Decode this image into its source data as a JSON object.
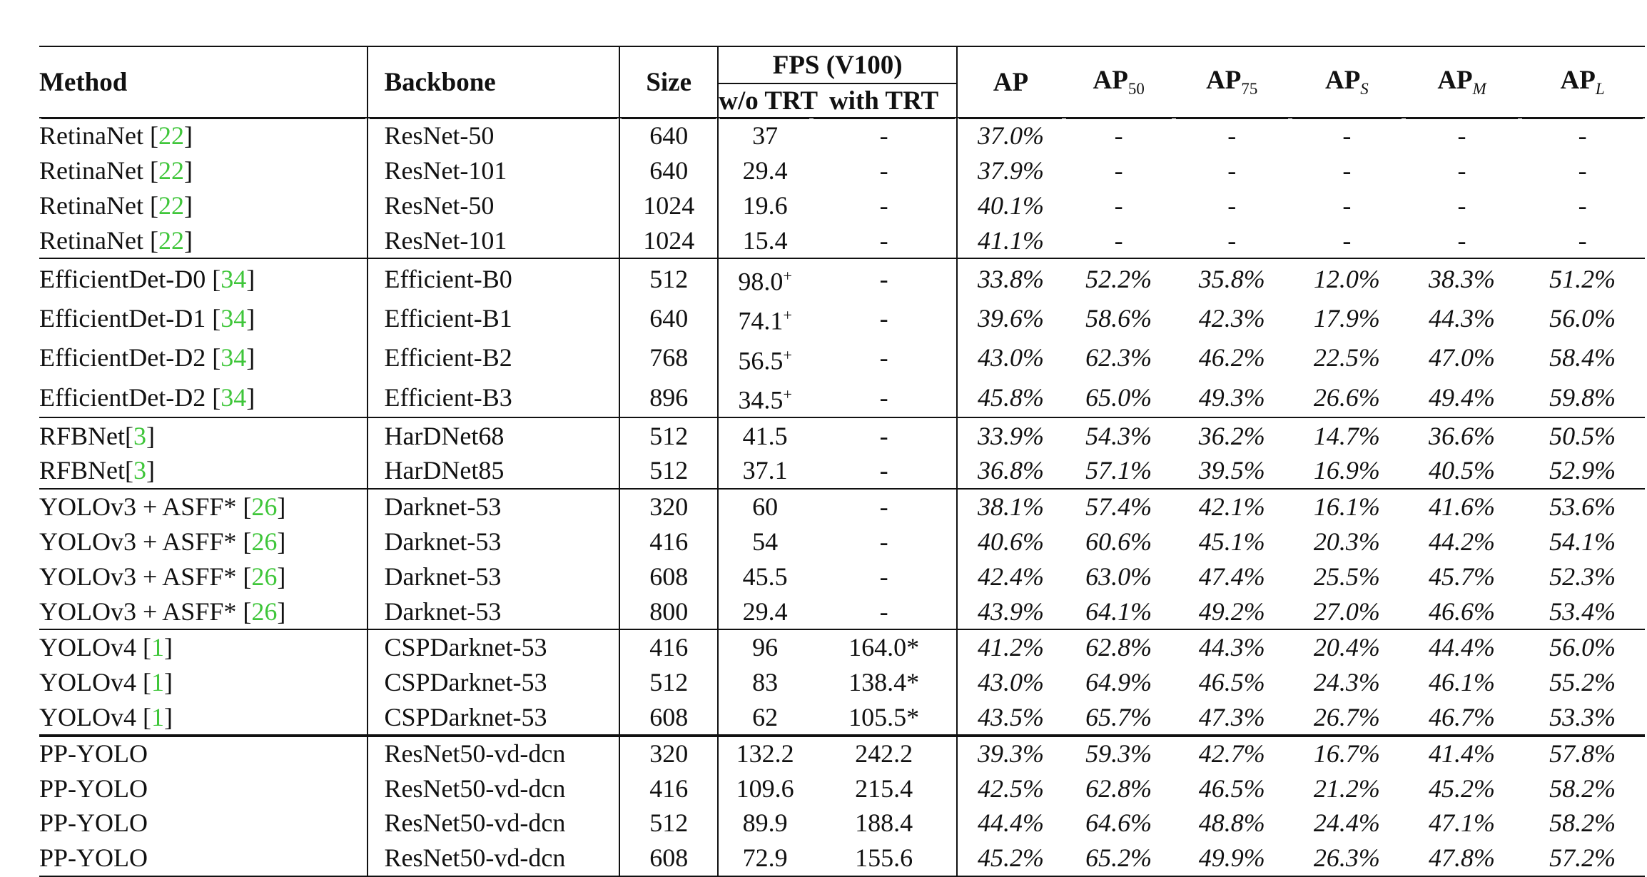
{
  "header": {
    "method": "Method",
    "backbone": "Backbone",
    "size": "Size",
    "fps_group": "FPS (V100)",
    "fps_wo": "w/o TRT",
    "fps_with": "with TRT",
    "ap": "AP",
    "ap50": "50",
    "ap75": "75",
    "aps": "S",
    "apm": "M",
    "apl": "L"
  },
  "groups": [
    {
      "name": "RetinaNet",
      "rows": [
        {
          "method": "RetinaNet",
          "ref": "22",
          "backbone": "ResNet-50",
          "size": "640",
          "fps_wo": "37",
          "fps_sup": "",
          "fps_with": "-",
          "ap": "37.0%",
          "ap50": "-",
          "ap75": "-",
          "aps": "-",
          "apm": "-",
          "apl": "-"
        },
        {
          "method": "RetinaNet",
          "ref": "22",
          "backbone": "ResNet-101",
          "size": "640",
          "fps_wo": "29.4",
          "fps_sup": "",
          "fps_with": "-",
          "ap": "37.9%",
          "ap50": "-",
          "ap75": "-",
          "aps": "-",
          "apm": "-",
          "apl": "-"
        },
        {
          "method": "RetinaNet",
          "ref": "22",
          "backbone": "ResNet-50",
          "size": "1024",
          "fps_wo": "19.6",
          "fps_sup": "",
          "fps_with": "-",
          "ap": "40.1%",
          "ap50": "-",
          "ap75": "-",
          "aps": "-",
          "apm": "-",
          "apl": "-"
        },
        {
          "method": "RetinaNet",
          "ref": "22",
          "backbone": "ResNet-101",
          "size": "1024",
          "fps_wo": "15.4",
          "fps_sup": "",
          "fps_with": "-",
          "ap": "41.1%",
          "ap50": "-",
          "ap75": "-",
          "aps": "-",
          "apm": "-",
          "apl": "-"
        }
      ]
    },
    {
      "name": "EfficientDet",
      "rows": [
        {
          "method": "EfficientDet-D0",
          "ref": "34",
          "backbone": "Efficient-B0",
          "size": "512",
          "fps_wo": "98.0",
          "fps_sup": "+",
          "fps_with": "-",
          "ap": "33.8%",
          "ap50": "52.2%",
          "ap75": "35.8%",
          "aps": "12.0%",
          "apm": "38.3%",
          "apl": "51.2%"
        },
        {
          "method": "EfficientDet-D1",
          "ref": "34",
          "backbone": "Efficient-B1",
          "size": "640",
          "fps_wo": "74.1",
          "fps_sup": "+",
          "fps_with": "-",
          "ap": "39.6%",
          "ap50": "58.6%",
          "ap75": "42.3%",
          "aps": "17.9%",
          "apm": "44.3%",
          "apl": "56.0%"
        },
        {
          "method": "EfficientDet-D2",
          "ref": "34",
          "backbone": "Efficient-B2",
          "size": "768",
          "fps_wo": "56.5",
          "fps_sup": "+",
          "fps_with": "-",
          "ap": "43.0%",
          "ap50": "62.3%",
          "ap75": "46.2%",
          "aps": "22.5%",
          "apm": "47.0%",
          "apl": "58.4%"
        },
        {
          "method": "EfficientDet-D2",
          "ref": "34",
          "backbone": "Efficient-B3",
          "size": "896",
          "fps_wo": "34.5",
          "fps_sup": "+",
          "fps_with": "-",
          "ap": "45.8%",
          "ap50": "65.0%",
          "ap75": "49.3%",
          "aps": "26.6%",
          "apm": "49.4%",
          "apl": "59.8%"
        }
      ]
    },
    {
      "name": "RFBNet",
      "rows": [
        {
          "method": "RFBNet",
          "ref": "3",
          "backbone": "HarDNet68",
          "size": "512",
          "fps_wo": "41.5",
          "fps_sup": "",
          "fps_with": "-",
          "ap": "33.9%",
          "ap50": "54.3%",
          "ap75": "36.2%",
          "aps": "14.7%",
          "apm": "36.6%",
          "apl": "50.5%"
        },
        {
          "method": "RFBNet",
          "ref": "3",
          "backbone": "HarDNet85",
          "size": "512",
          "fps_wo": "37.1",
          "fps_sup": "",
          "fps_with": "-",
          "ap": "36.8%",
          "ap50": "57.1%",
          "ap75": "39.5%",
          "aps": "16.9%",
          "apm": "40.5%",
          "apl": "52.9%"
        }
      ]
    },
    {
      "name": "YOLOv3 + ASFF",
      "rows": [
        {
          "method": "YOLOv3 + ASFF*",
          "ref": "26",
          "backbone": "Darknet-53",
          "size": "320",
          "fps_wo": "60",
          "fps_sup": "",
          "fps_with": "-",
          "ap": "38.1%",
          "ap50": "57.4%",
          "ap75": "42.1%",
          "aps": "16.1%",
          "apm": "41.6%",
          "apl": "53.6%"
        },
        {
          "method": "YOLOv3 + ASFF*",
          "ref": "26",
          "backbone": "Darknet-53",
          "size": "416",
          "fps_wo": "54",
          "fps_sup": "",
          "fps_with": "-",
          "ap": "40.6%",
          "ap50": "60.6%",
          "ap75": "45.1%",
          "aps": "20.3%",
          "apm": "44.2%",
          "apl": "54.1%"
        },
        {
          "method": "YOLOv3 + ASFF*",
          "ref": "26",
          "backbone": "Darknet-53",
          "size": "608",
          "fps_wo": "45.5",
          "fps_sup": "",
          "fps_with": "-",
          "ap": "42.4%",
          "ap50": "63.0%",
          "ap75": "47.4%",
          "aps": "25.5%",
          "apm": "45.7%",
          "apl": "52.3%"
        },
        {
          "method": "YOLOv3 + ASFF*",
          "ref": "26",
          "backbone": "Darknet-53",
          "size": "800",
          "fps_wo": "29.4",
          "fps_sup": "",
          "fps_with": "-",
          "ap": "43.9%",
          "ap50": "64.1%",
          "ap75": "49.2%",
          "aps": "27.0%",
          "apm": "46.6%",
          "apl": "53.4%"
        }
      ]
    },
    {
      "name": "YOLOv4",
      "rows": [
        {
          "method": "YOLOv4",
          "ref": "1",
          "backbone": "CSPDarknet-53",
          "size": "416",
          "fps_wo": "96",
          "fps_sup": "",
          "fps_with": "164.0*",
          "ap": "41.2%",
          "ap50": "62.8%",
          "ap75": "44.3%",
          "aps": "20.4%",
          "apm": "44.4%",
          "apl": "56.0%"
        },
        {
          "method": "YOLOv4",
          "ref": "1",
          "backbone": "CSPDarknet-53",
          "size": "512",
          "fps_wo": "83",
          "fps_sup": "",
          "fps_with": "138.4*",
          "ap": "43.0%",
          "ap50": "64.9%",
          "ap75": "46.5%",
          "aps": "24.3%",
          "apm": "46.1%",
          "apl": "55.2%"
        },
        {
          "method": "YOLOv4",
          "ref": "1",
          "backbone": "CSPDarknet-53",
          "size": "608",
          "fps_wo": "62",
          "fps_sup": "",
          "fps_with": "105.5*",
          "ap": "43.5%",
          "ap50": "65.7%",
          "ap75": "47.3%",
          "aps": "26.7%",
          "apm": "46.7%",
          "apl": "53.3%"
        }
      ]
    },
    {
      "name": "PP-YOLO",
      "rows": [
        {
          "method": "PP-YOLO",
          "ref": "",
          "backbone": "ResNet50-vd-dcn",
          "size": "320",
          "fps_wo": "132.2",
          "fps_sup": "",
          "fps_with": "242.2",
          "ap": "39.3%",
          "ap50": "59.3%",
          "ap75": "42.7%",
          "aps": "16.7%",
          "apm": "41.4%",
          "apl": "57.8%"
        },
        {
          "method": "PP-YOLO",
          "ref": "",
          "backbone": "ResNet50-vd-dcn",
          "size": "416",
          "fps_wo": "109.6",
          "fps_sup": "",
          "fps_with": "215.4",
          "ap": "42.5%",
          "ap50": "62.8%",
          "ap75": "46.5%",
          "aps": "21.2%",
          "apm": "45.2%",
          "apl": "58.2%"
        },
        {
          "method": "PP-YOLO",
          "ref": "",
          "backbone": "ResNet50-vd-dcn",
          "size": "512",
          "fps_wo": "89.9",
          "fps_sup": "",
          "fps_with": "188.4",
          "ap": "44.4%",
          "ap50": "64.6%",
          "ap75": "48.8%",
          "aps": "24.4%",
          "apm": "47.1%",
          "apl": "58.2%"
        },
        {
          "method": "PP-YOLO",
          "ref": "",
          "backbone": "ResNet50-vd-dcn",
          "size": "608",
          "fps_wo": "72.9",
          "fps_sup": "",
          "fps_with": "155.6",
          "ap": "45.2%",
          "ap50": "65.2%",
          "ap75": "49.9%",
          "aps": "26.3%",
          "apm": "47.8%",
          "apl": "57.2%"
        }
      ]
    }
  ]
}
